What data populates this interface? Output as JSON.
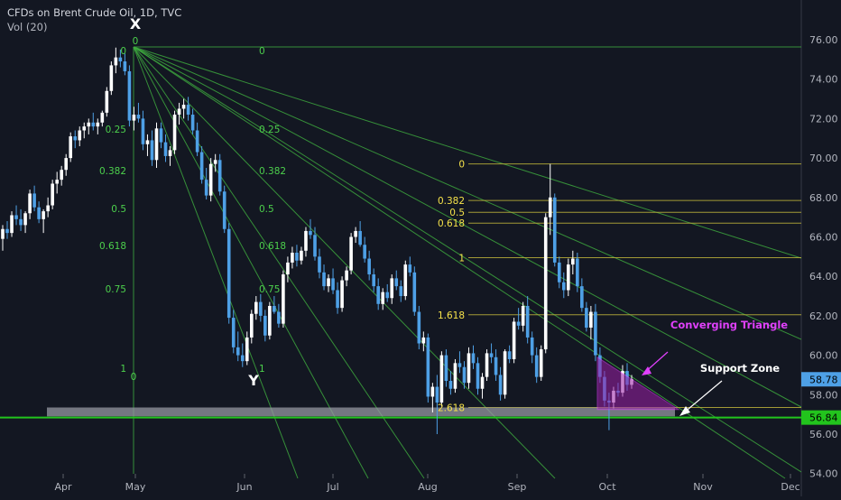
{
  "header": {
    "title": "CFDs on Brent Crude Oil, 1D, TVC",
    "indicator": "Vol (20)"
  },
  "colors": {
    "background": "#131722",
    "candle_up": "#ffffff",
    "candle_down": "#4ea0e6",
    "fan_line": "#3fae3f",
    "fan_label": "#4cd04c",
    "fib_line": "#bdb23a",
    "fib_label": "#f5e24a",
    "triangle": "#9c1fa8",
    "triangle_label": "#e040fb",
    "support_zone": "#9598a1",
    "support_line": "#22c41d",
    "axis_text": "#b2b5be"
  },
  "annotations": {
    "x_label": "X",
    "y_label": "Y",
    "converging_triangle": "Converging Triangle",
    "support_zone": "Support Zone"
  },
  "chart_data": {
    "type": "candlestick",
    "title": "CFDs on Brent Crude Oil, 1D, TVC",
    "y_axis": {
      "position": "right",
      "ylim": [
        54,
        77
      ],
      "ticks": [
        "54.00",
        "56.00",
        "58.00",
        "60.00",
        "62.00",
        "64.00",
        "66.00",
        "68.00",
        "70.00",
        "72.00",
        "74.00",
        "76.00"
      ]
    },
    "x_axis": {
      "ticks": [
        "Apr",
        "May",
        "Jun",
        "Jul",
        "Aug",
        "Sep",
        "Oct",
        "Nov",
        "Dec"
      ]
    },
    "price_labels": [
      {
        "value": "58.78",
        "role": "last price"
      },
      {
        "value": "56.84",
        "role": "support line"
      }
    ],
    "points": {
      "X": {
        "date": "Apr 24",
        "price": 75.6
      },
      "Y": {
        "date": "Jun 5",
        "price": 59.5
      }
    },
    "fib_fan": {
      "levels": [
        "0",
        "0.25",
        "0.382",
        "0.5",
        "0.618",
        "0.75",
        "1"
      ],
      "labels_left": [
        "0",
        "0.25",
        "0.382",
        "0.5",
        "0.618",
        "0.75",
        "1"
      ],
      "labels_right": [
        "0",
        "0.25",
        "0.382",
        "0.5",
        "0.618",
        "0.75",
        "1"
      ],
      "extra_label": "0"
    },
    "fib_retracement": {
      "levels": [
        {
          "label": "0",
          "price": 69.7
        },
        {
          "label": "0.382",
          "price": 67.85
        },
        {
          "label": "0.5",
          "price": 67.25
        },
        {
          "label": "0.618",
          "price": 66.7
        },
        {
          "label": "1",
          "price": 64.95
        },
        {
          "label": "1.618",
          "price": 62.05
        },
        {
          "label": "2.618",
          "price": 57.35
        }
      ]
    },
    "support_zone": {
      "low": 56.9,
      "high": 57.35
    },
    "support_line": {
      "price": 56.84
    },
    "converging_triangle": {
      "high": 59.9,
      "low": 57.25
    },
    "series": [
      {
        "candles": [
          [
            65.9,
            66.6,
            65.3,
            66.4
          ],
          [
            66.4,
            66.8,
            65.9,
            66.2
          ],
          [
            66.2,
            67.3,
            66.0,
            67.1
          ],
          [
            67.1,
            67.6,
            66.6,
            66.9
          ],
          [
            66.9,
            67.4,
            66.3,
            66.6
          ],
          [
            66.6,
            67.3,
            66.2,
            67.2
          ],
          [
            67.2,
            68.4,
            66.9,
            68.2
          ],
          [
            68.2,
            68.6,
            67.3,
            67.5
          ],
          [
            67.5,
            67.8,
            66.7,
            66.9
          ],
          [
            66.9,
            67.4,
            66.2,
            67.3
          ],
          [
            67.3,
            68.0,
            67.0,
            67.6
          ],
          [
            67.6,
            68.9,
            67.4,
            68.7
          ],
          [
            68.7,
            69.3,
            68.2,
            68.9
          ],
          [
            68.9,
            69.6,
            68.6,
            69.4
          ],
          [
            69.4,
            70.2,
            69.1,
            70.0
          ],
          [
            70.0,
            71.3,
            69.8,
            71.1
          ],
          [
            71.1,
            71.4,
            70.5,
            70.9
          ],
          [
            70.9,
            71.6,
            70.6,
            71.4
          ],
          [
            71.4,
            71.8,
            71.0,
            71.6
          ],
          [
            71.6,
            72.0,
            71.2,
            71.8
          ],
          [
            71.8,
            72.3,
            71.4,
            71.6
          ],
          [
            71.6,
            72.0,
            71.2,
            71.8
          ],
          [
            71.8,
            72.4,
            71.6,
            72.3
          ],
          [
            72.3,
            73.6,
            72.1,
            73.4
          ],
          [
            73.4,
            74.9,
            73.2,
            74.7
          ],
          [
            74.7,
            75.6,
            74.3,
            75.1
          ],
          [
            75.1,
            75.5,
            74.6,
            74.9
          ],
          [
            74.9,
            75.3,
            74.2,
            74.4
          ],
          [
            74.4,
            74.7,
            71.6,
            71.9
          ],
          [
            71.9,
            72.6,
            71.4,
            72.2
          ],
          [
            72.2,
            72.8,
            71.8,
            72.0
          ],
          [
            72.0,
            72.4,
            70.4,
            70.7
          ],
          [
            70.7,
            71.2,
            70.1,
            70.9
          ],
          [
            70.9,
            71.4,
            69.6,
            69.9
          ],
          [
            69.9,
            71.8,
            69.5,
            71.5
          ],
          [
            71.5,
            71.8,
            70.5,
            70.8
          ],
          [
            70.8,
            71.2,
            69.8,
            70.1
          ],
          [
            70.1,
            70.6,
            69.6,
            70.4
          ],
          [
            70.4,
            72.4,
            70.2,
            72.2
          ],
          [
            72.2,
            72.8,
            71.7,
            72.5
          ],
          [
            72.5,
            73.0,
            72.0,
            72.7
          ],
          [
            72.7,
            73.1,
            71.9,
            72.2
          ],
          [
            72.2,
            72.5,
            71.2,
            71.4
          ],
          [
            71.4,
            71.8,
            70.1,
            70.3
          ],
          [
            70.3,
            70.6,
            68.7,
            68.9
          ],
          [
            68.9,
            69.5,
            67.9,
            68.1
          ],
          [
            68.1,
            70.0,
            67.8,
            69.7
          ],
          [
            69.7,
            70.2,
            69.3,
            69.9
          ],
          [
            69.9,
            70.2,
            68.1,
            68.3
          ],
          [
            68.3,
            68.6,
            66.2,
            66.4
          ],
          [
            66.4,
            66.7,
            61.6,
            61.9
          ],
          [
            61.9,
            62.3,
            60.1,
            60.4
          ],
          [
            60.4,
            61.2,
            59.7,
            60.0
          ],
          [
            60.0,
            60.6,
            59.4,
            59.7
          ],
          [
            59.7,
            61.2,
            59.5,
            60.9
          ],
          [
            60.9,
            62.3,
            60.6,
            62.1
          ],
          [
            62.1,
            63.0,
            61.8,
            62.7
          ],
          [
            62.7,
            63.1,
            61.7,
            62.0
          ],
          [
            62.0,
            62.3,
            60.7,
            61.0
          ],
          [
            61.0,
            62.7,
            60.8,
            62.5
          ],
          [
            62.5,
            63.0,
            62.1,
            62.2
          ],
          [
            62.2,
            62.6,
            61.4,
            61.6
          ],
          [
            61.6,
            64.3,
            61.4,
            64.1
          ],
          [
            64.1,
            65.0,
            63.7,
            64.7
          ],
          [
            64.7,
            65.5,
            64.4,
            65.2
          ],
          [
            65.2,
            65.6,
            64.5,
            64.8
          ],
          [
            64.8,
            65.5,
            64.6,
            65.3
          ],
          [
            65.3,
            66.5,
            65.0,
            66.3
          ],
          [
            66.3,
            66.9,
            65.9,
            66.1
          ],
          [
            66.1,
            66.5,
            64.8,
            65.0
          ],
          [
            65.0,
            65.4,
            63.9,
            64.2
          ],
          [
            64.2,
            64.6,
            63.3,
            63.5
          ],
          [
            63.5,
            64.1,
            63.2,
            63.9
          ],
          [
            63.9,
            64.4,
            63.1,
            63.3
          ],
          [
            63.3,
            63.7,
            62.1,
            62.4
          ],
          [
            62.4,
            64.0,
            62.2,
            63.8
          ],
          [
            63.8,
            64.5,
            63.5,
            64.3
          ],
          [
            64.3,
            66.2,
            64.1,
            66.0
          ],
          [
            66.0,
            66.5,
            65.7,
            66.3
          ],
          [
            66.3,
            66.8,
            65.5,
            65.6
          ],
          [
            65.6,
            66.0,
            64.7,
            64.9
          ],
          [
            64.9,
            65.3,
            63.8,
            64.1
          ],
          [
            64.1,
            64.4,
            63.2,
            63.5
          ],
          [
            63.5,
            63.9,
            62.3,
            62.6
          ],
          [
            62.6,
            63.4,
            62.3,
            63.2
          ],
          [
            63.2,
            63.6,
            62.7,
            62.9
          ],
          [
            62.9,
            64.1,
            62.6,
            63.9
          ],
          [
            63.9,
            64.3,
            63.3,
            63.5
          ],
          [
            63.5,
            63.8,
            62.7,
            63.0
          ],
          [
            63.0,
            64.8,
            62.8,
            64.6
          ],
          [
            64.6,
            65.0,
            64.0,
            64.2
          ],
          [
            64.2,
            64.5,
            62.0,
            62.2
          ],
          [
            62.2,
            62.5,
            60.3,
            60.6
          ],
          [
            60.6,
            61.2,
            60.2,
            60.9
          ],
          [
            60.9,
            61.1,
            57.6,
            57.9
          ],
          [
            57.9,
            58.6,
            57.1,
            58.4
          ],
          [
            58.4,
            59.0,
            56.0,
            57.6
          ],
          [
            57.6,
            60.2,
            57.4,
            60.0
          ],
          [
            60.0,
            60.3,
            58.4,
            58.7
          ],
          [
            58.7,
            59.2,
            58.0,
            58.3
          ],
          [
            58.3,
            59.8,
            58.1,
            59.6
          ],
          [
            59.6,
            60.2,
            59.1,
            59.4
          ],
          [
            59.4,
            59.7,
            58.3,
            58.6
          ],
          [
            58.6,
            60.4,
            58.3,
            60.1
          ],
          [
            60.1,
            60.5,
            59.3,
            59.6
          ],
          [
            59.6,
            59.9,
            58.0,
            58.3
          ],
          [
            58.3,
            59.1,
            57.8,
            58.9
          ],
          [
            58.9,
            60.3,
            58.7,
            60.1
          ],
          [
            60.1,
            60.6,
            59.6,
            59.9
          ],
          [
            59.9,
            60.3,
            58.7,
            59.0
          ],
          [
            59.0,
            59.4,
            57.7,
            58.0
          ],
          [
            58.0,
            60.3,
            57.8,
            60.2
          ],
          [
            60.2,
            60.5,
            59.6,
            59.8
          ],
          [
            59.8,
            61.9,
            59.6,
            61.7
          ],
          [
            61.7,
            62.4,
            61.3,
            61.5
          ],
          [
            61.5,
            62.7,
            61.2,
            62.5
          ],
          [
            62.5,
            63.0,
            60.6,
            60.9
          ],
          [
            60.9,
            61.2,
            59.6,
            60.0
          ],
          [
            60.0,
            60.4,
            58.6,
            58.9
          ],
          [
            58.9,
            60.5,
            58.7,
            60.3
          ],
          [
            60.3,
            67.2,
            60.1,
            67.0
          ],
          [
            67.0,
            69.7,
            66.1,
            68.0
          ],
          [
            68.0,
            68.2,
            64.5,
            64.7
          ],
          [
            64.7,
            65.0,
            63.4,
            63.7
          ],
          [
            63.7,
            64.2,
            62.9,
            63.3
          ],
          [
            63.3,
            64.9,
            63.0,
            64.6
          ],
          [
            64.6,
            65.3,
            64.1,
            64.9
          ],
          [
            64.9,
            65.2,
            63.2,
            63.5
          ],
          [
            63.5,
            63.9,
            62.2,
            62.4
          ],
          [
            62.4,
            62.7,
            61.2,
            61.4
          ],
          [
            61.4,
            62.5,
            60.8,
            62.2
          ],
          [
            62.2,
            62.6,
            59.7,
            60.0
          ],
          [
            60.0,
            60.4,
            58.6,
            58.9
          ],
          [
            58.9,
            59.2,
            57.4,
            57.7
          ],
          [
            57.7,
            58.1,
            56.2,
            57.6
          ],
          [
            57.6,
            58.4,
            57.3,
            58.2
          ],
          [
            58.2,
            58.6,
            57.9,
            58.1
          ],
          [
            58.1,
            59.5,
            57.9,
            59.2
          ],
          [
            59.2,
            59.6,
            58.2,
            58.5
          ],
          [
            58.5,
            59.0,
            58.3,
            58.78
          ]
        ]
      }
    ]
  }
}
